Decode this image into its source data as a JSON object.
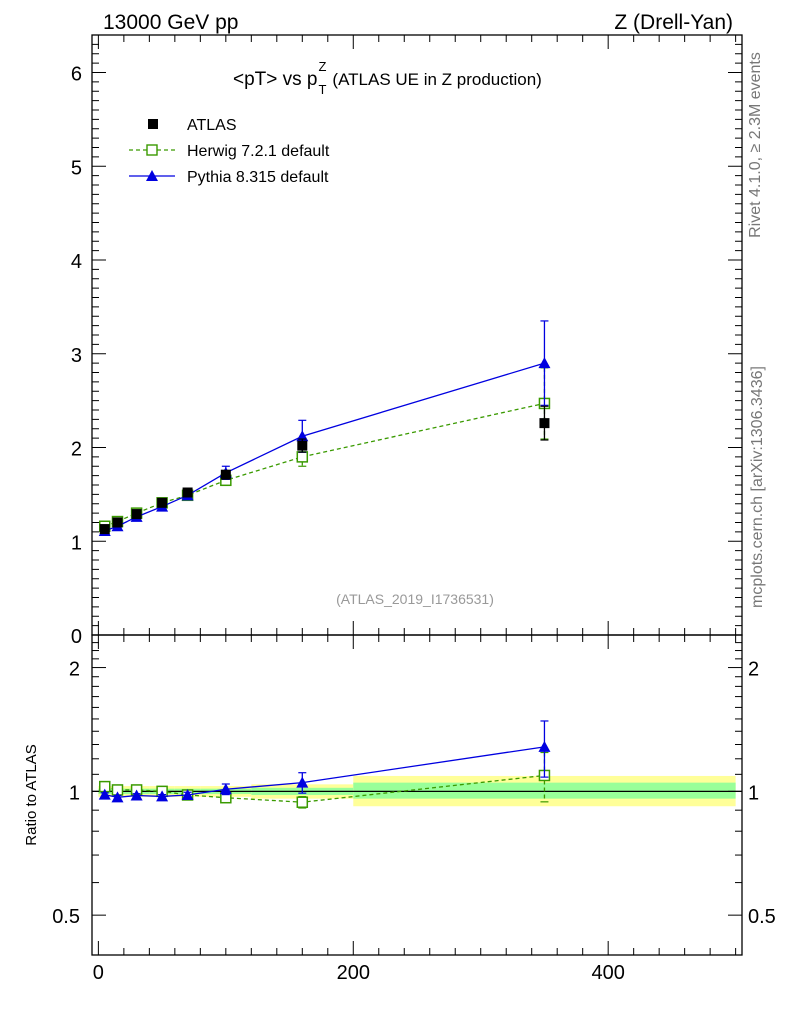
{
  "header": {
    "left": "13000 GeV pp",
    "right": "Z (Drell-Yan)"
  },
  "side": {
    "rivet": "Rivet 4.1.0, ≥ 2.3M events",
    "mcplots": "mcplots.cern.ch [arXiv:1306.3436]"
  },
  "colors": {
    "atlas": "#000000",
    "herwig": "#3a9a00",
    "pythia": "#0000e0",
    "band_outer": "#ffff99",
    "band_inner": "#99ff99"
  },
  "chart_data": [
    {
      "type": "line",
      "title": "<pT> vs p",
      "title_sup": "Z",
      "title_sub": "T",
      "title_rest": "(ATLAS UE in Z production)",
      "watermark": "(ATLAS_2019_I1736531)",
      "xlabel": "",
      "ylabel": "",
      "xlim": [
        -5,
        505
      ],
      "ylim": [
        0,
        6.4
      ],
      "yticks": [
        0,
        1,
        2,
        3,
        4,
        5,
        6
      ],
      "ytick_labels": [
        "0",
        "1",
        "2",
        "3",
        "4",
        "5",
        "6"
      ],
      "x": [
        5,
        15,
        30,
        50,
        70,
        100,
        160,
        350
      ],
      "series": [
        {
          "name": "ATLAS",
          "marker": "square-filled",
          "values": [
            1.13,
            1.2,
            1.29,
            1.41,
            1.52,
            1.71,
            2.02,
            2.26
          ],
          "errors": [
            0.02,
            0.02,
            0.02,
            0.03,
            0.03,
            0.04,
            0.07,
            0.18
          ]
        },
        {
          "name": "Herwig 7.2.1 default",
          "marker": "square-open",
          "line": "dashed",
          "values": [
            1.16,
            1.21,
            1.3,
            1.41,
            1.49,
            1.65,
            1.9,
            2.47
          ],
          "errors": [
            0.01,
            0.01,
            0.01,
            0.01,
            0.02,
            0.03,
            0.1,
            0.38
          ]
        },
        {
          "name": "Pythia 8.315 default",
          "marker": "triangle-filled",
          "values": [
            1.11,
            1.16,
            1.26,
            1.37,
            1.49,
            1.73,
            2.12,
            2.9
          ],
          "errors": [
            0.02,
            0.02,
            0.02,
            0.02,
            0.03,
            0.07,
            0.17,
            0.45
          ]
        }
      ]
    },
    {
      "type": "line",
      "ylabel": "Ratio to ATLAS",
      "yscale": "log",
      "xlim": [
        -5,
        505
      ],
      "ylim": [
        0.4,
        2.4
      ],
      "yticks": [
        0.5,
        1,
        2
      ],
      "ytick_labels": [
        "0.5",
        "1",
        "2"
      ],
      "xticks": [
        0,
        200,
        400
      ],
      "xtick_labels": [
        "0",
        "200",
        "400"
      ],
      "x": [
        5,
        15,
        30,
        50,
        70,
        100,
        160,
        350
      ],
      "band_edges": [
        0,
        10,
        20,
        40,
        60,
        80,
        120,
        200,
        500
      ],
      "band_outer": [
        [
          0.97,
          1.03
        ],
        [
          0.97,
          1.03
        ],
        [
          0.97,
          1.03
        ],
        [
          0.97,
          1.03
        ],
        [
          0.97,
          1.03
        ],
        [
          0.97,
          1.03
        ],
        [
          0.96,
          1.04
        ],
        [
          0.92,
          1.09
        ]
      ],
      "band_inner": [
        [
          0.985,
          1.015
        ],
        [
          0.985,
          1.015
        ],
        [
          0.985,
          1.015
        ],
        [
          0.985,
          1.015
        ],
        [
          0.985,
          1.015
        ],
        [
          0.985,
          1.015
        ],
        [
          0.98,
          1.02
        ],
        [
          0.96,
          1.05
        ]
      ],
      "series": [
        {
          "name": "Herwig 7.2.1 default",
          "values": [
            1.027,
            1.008,
            1.008,
            1.0,
            0.98,
            0.965,
            0.941,
            1.093
          ],
          "errors": [
            0.01,
            0.01,
            0.01,
            0.01,
            0.01,
            0.015,
            0.03,
            0.15
          ]
        },
        {
          "name": "Pythia 8.315 default",
          "values": [
            0.982,
            0.967,
            0.977,
            0.972,
            0.98,
            1.012,
            1.05,
            1.283
          ],
          "errors": [
            0.01,
            0.01,
            0.01,
            0.01,
            0.015,
            0.03,
            0.06,
            0.2
          ]
        }
      ]
    }
  ]
}
